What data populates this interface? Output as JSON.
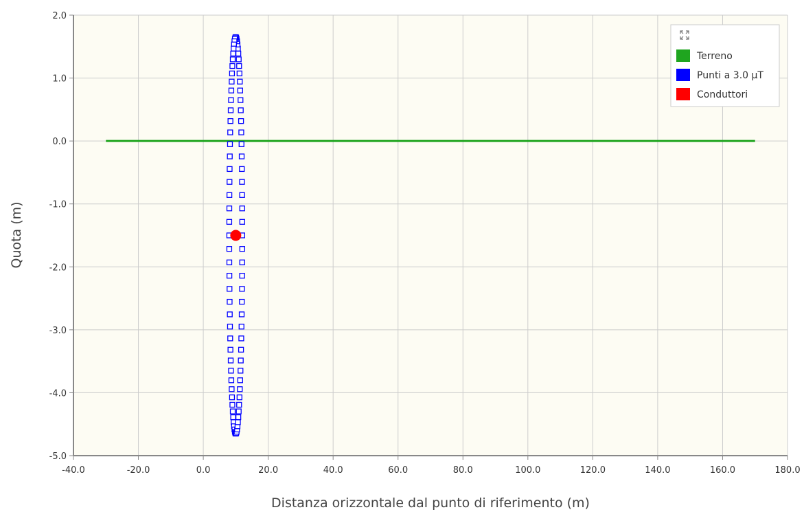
{
  "chart_data": {
    "type": "scatter",
    "xlabel": "Distanza orizzontale dal punto di riferimento (m)",
    "ylabel": "Quota (m)",
    "xlim": [
      -40,
      180
    ],
    "ylim": [
      -5,
      2
    ],
    "xticks": [
      "-40.0",
      "-20.0",
      "0.0",
      "20.0",
      "40.0",
      "60.0",
      "80.0",
      "100.0",
      "120.0",
      "140.0",
      "160.0",
      "180.0"
    ],
    "yticks": [
      "2.0",
      "1.0",
      "0.0",
      "-1.0",
      "-2.0",
      "-3.0",
      "-4.0",
      "-5.0"
    ],
    "grid": true,
    "legend_position": "top-right",
    "series": [
      {
        "name": "Terreno",
        "kind": "line",
        "color": "#1fa51f",
        "x": [
          -30,
          170
        ],
        "y": [
          0,
          0
        ]
      },
      {
        "name": "Punti a 3.0 µT",
        "kind": "contour-markers",
        "color": "#0000ff",
        "marker": "square-outline",
        "center": [
          10,
          -1.5
        ],
        "semi_axes": [
          2,
          3.15
        ],
        "points": 92
      },
      {
        "name": "Conduttori",
        "kind": "point",
        "color": "#ff0000",
        "x": [
          10
        ],
        "y": [
          -1.5
        ]
      }
    ],
    "background": "#fdfcf3",
    "grid_color": "#cccccc"
  },
  "legend": {
    "expand_icon": "expand-icon"
  }
}
